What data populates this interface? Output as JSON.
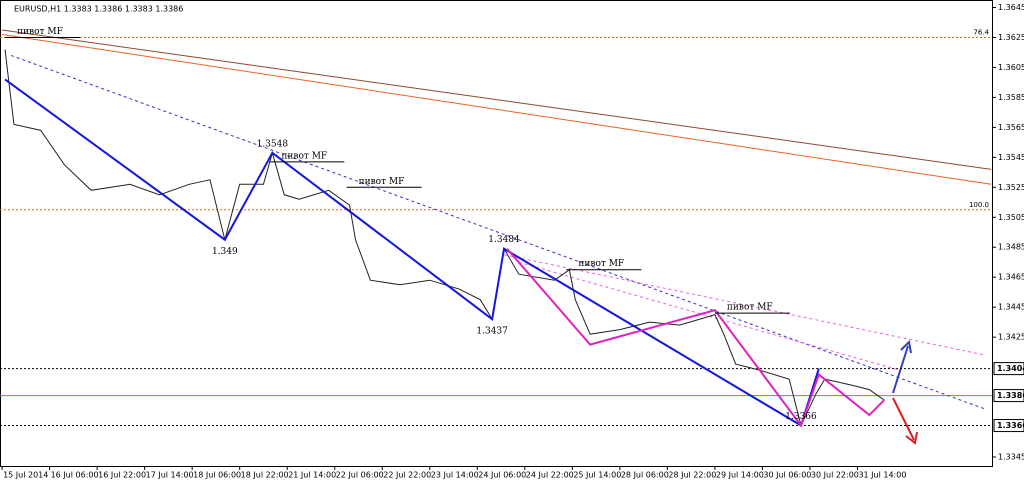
{
  "chart_data": {
    "type": "line",
    "title": "EURUSD,H1  1.3383 1.3386 1.3383 1.3386",
    "xlim": [
      -0.7,
      333.3
    ],
    "ylim": [
      1.3339,
      1.365
    ],
    "xticks": [
      {
        "value": 0,
        "label": "15 Jul 2014"
      },
      {
        "value": 16,
        "label": "16 Jul 06:00"
      },
      {
        "value": 32,
        "label": "16 Jul 22:00"
      },
      {
        "value": 48,
        "label": "17 Jul 14:00"
      },
      {
        "value": 64,
        "label": "18 Jul 06:00"
      },
      {
        "value": 80,
        "label": "18 Jul 22:00"
      },
      {
        "value": 96,
        "label": "21 Jul 14:00"
      },
      {
        "value": 112,
        "label": "22 Jul 06:00"
      },
      {
        "value": 128,
        "label": "22 Jul 22:00"
      },
      {
        "value": 144,
        "label": "23 Jul 14:00"
      },
      {
        "value": 160,
        "label": "24 Jul 06:00"
      },
      {
        "value": 176,
        "label": "24 Jul 22:00"
      },
      {
        "value": 192,
        "label": "25 Jul 14:00"
      },
      {
        "value": 208,
        "label": "28 Jul 06:00"
      },
      {
        "value": 224,
        "label": "28 Jul 22:00"
      },
      {
        "value": 240,
        "label": "29 Jul 14:00"
      },
      {
        "value": 256,
        "label": "30 Jul 06:00"
      },
      {
        "value": 272,
        "label": "30 Jul 22:00"
      },
      {
        "value": 288,
        "label": "31 Jul 14:00"
      }
    ],
    "yticks": [
      1.3645,
      1.3625,
      1.3605,
      1.3585,
      1.3565,
      1.3545,
      1.3525,
      1.3505,
      1.3485,
      1.3465,
      1.3445,
      1.3425,
      1.3345
    ],
    "series": [
      {
        "color": "#222222",
        "x": [
          1,
          2,
          4,
          13,
          21,
          30,
          43,
          53,
          63,
          70,
          75,
          80,
          88,
          91,
          95,
          100,
          110,
          117,
          119,
          124,
          134,
          144,
          154,
          161,
          165,
          169,
          174,
          186,
          191,
          193,
          198,
          208,
          218,
          228,
          235,
          240,
          243,
          247,
          255,
          265,
          269,
          274,
          277,
          286,
          292,
          297
        ],
        "values": [
          1.3617,
          1.36,
          1.3567,
          1.3563,
          1.354,
          1.3523,
          1.3527,
          1.352,
          1.3527,
          1.353,
          1.349,
          1.3527,
          1.3527,
          1.3548,
          1.352,
          1.3517,
          1.3523,
          1.3513,
          1.349,
          1.3463,
          1.346,
          1.3463,
          1.3457,
          1.345,
          1.3437,
          1.3484,
          1.3467,
          1.3463,
          1.347,
          1.345,
          1.3427,
          1.343,
          1.3435,
          1.3433,
          1.3437,
          1.344,
          1.3427,
          1.3407,
          1.3403,
          1.3397,
          1.3366,
          1.3387,
          1.3397,
          1.3393,
          1.339,
          1.3383
        ]
      },
      {
        "color": "#1515e0",
        "x": [
          1,
          75,
          91,
          165,
          169,
          269,
          275
        ],
        "values": [
          1.3597,
          1.349,
          1.3548,
          1.3437,
          1.3484,
          1.3366,
          1.3404
        ]
      },
      {
        "color": "#e020c0",
        "x": [
          170,
          198,
          240,
          269,
          275,
          292,
          297
        ],
        "values": [
          1.3484,
          1.342,
          1.3443,
          1.3366,
          1.34,
          1.3373,
          1.3383
        ]
      }
    ],
    "trend_lines": [
      {
        "color": "#8b4a2b",
        "x": [
          0,
          333
        ],
        "values": [
          1.363,
          1.3537
        ]
      },
      {
        "color": "#f06020",
        "x": [
          0,
          333
        ],
        "values": [
          1.3627,
          1.3527
        ]
      },
      {
        "color": "#3030d0",
        "x": [
          3,
          331
        ],
        "values": [
          1.3613,
          1.3377
        ]
      },
      {
        "color": "#f060e0",
        "x": [
          169,
          331
        ],
        "values": [
          1.348,
          1.3413
        ]
      },
      {
        "color": "#f060e0",
        "x": [
          174,
          302
        ],
        "values": [
          1.3475,
          1.3403
        ]
      }
    ],
    "fib_levels": [
      {
        "value": 1.3625,
        "label": "76.4"
      },
      {
        "value": 1.351,
        "label": "100.0"
      }
    ],
    "price_levels": [
      1.3404,
      1.3386,
      1.3366
    ],
    "swings": {
      "x": [
        91,
        75,
        169,
        165,
        269
      ],
      "values": [
        1.3548,
        1.349,
        1.3484,
        1.3437,
        1.3366
      ]
    },
    "pivots": [
      {
        "label": "пивот MF",
        "x": 1,
        "value": 1.3625
      },
      {
        "label": "пивот MF",
        "x": 90,
        "value": 1.3542
      },
      {
        "label": "пивот MF",
        "x": 116,
        "value": 1.3525
      },
      {
        "label": "пивот MF",
        "x": 190,
        "value": 1.347
      },
      {
        "label": "пивот MF",
        "x": 240,
        "value": 1.3441
      }
    ]
  }
}
